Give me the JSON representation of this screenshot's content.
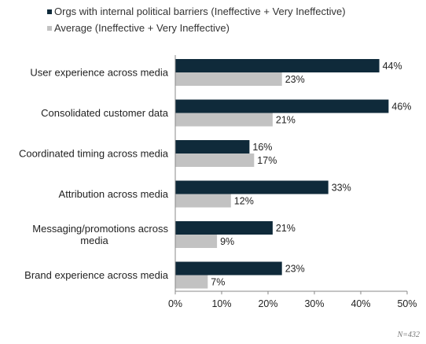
{
  "chart_data": {
    "type": "bar",
    "orientation": "horizontal",
    "categories": [
      "User experience across media",
      "Consolidated customer data",
      "Coordinated timing across media",
      "Attribution across media",
      "Messaging/promotions across media",
      "Brand experience across media"
    ],
    "series": [
      {
        "name": "Orgs with internal political barriers (Ineffective + Very Ineffective)",
        "values": [
          44,
          46,
          16,
          33,
          21,
          23
        ],
        "labels": [
          "44%",
          "46%",
          "16%",
          "33%",
          "21%",
          "23%"
        ],
        "color": "#0f2a3a"
      },
      {
        "name": "Average (Ineffective + Very Ineffective)",
        "values": [
          23,
          21,
          17,
          12,
          9,
          7
        ],
        "labels": [
          "23%",
          "21%",
          "17%",
          "12%",
          "9%",
          "7%"
        ],
        "color": "#c2c2c2"
      }
    ],
    "xlim": [
      0,
      50
    ],
    "ticks": [
      "0%",
      "10%",
      "20%",
      "30%",
      "40%",
      "50%"
    ],
    "grid": false,
    "legend": "top"
  },
  "footnote": "N=432"
}
